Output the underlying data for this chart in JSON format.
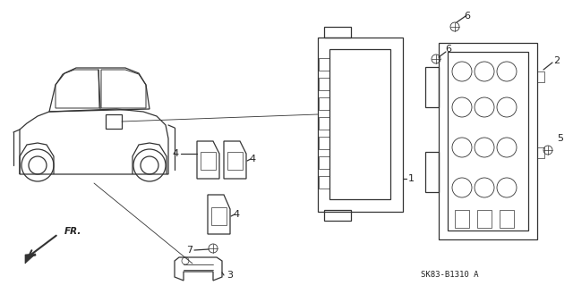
{
  "bg_color": "#ffffff",
  "line_color": "#333333",
  "text_color": "#222222",
  "diagram_code": "SK83-B1310 A",
  "figsize": [
    6.4,
    3.19
  ],
  "dpi": 100
}
